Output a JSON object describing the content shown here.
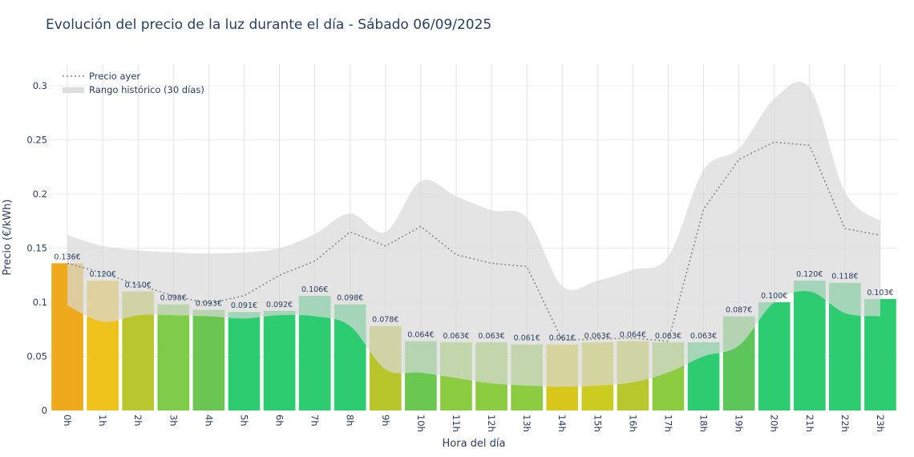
{
  "chart_data": {
    "type": "bar",
    "title": "Evolución del precio de la luz durante el día - Sábado 06/09/2025",
    "xlabel": "Hora del día",
    "ylabel": "Precio (€/kWh)",
    "ylim": [
      0,
      0.32
    ],
    "yticks": [
      0,
      0.05,
      0.1,
      0.15,
      0.2,
      0.25,
      0.3
    ],
    "ytick_labels": [
      "0",
      "0.05",
      "0.1",
      "0.15",
      "0.2",
      "0.25",
      "0.3"
    ],
    "grid": true,
    "categories": [
      "0h",
      "1h",
      "2h",
      "3h",
      "4h",
      "5h",
      "6h",
      "7h",
      "8h",
      "9h",
      "10h",
      "11h",
      "12h",
      "13h",
      "14h",
      "15h",
      "16h",
      "17h",
      "18h",
      "19h",
      "20h",
      "21h",
      "22h",
      "23h"
    ],
    "values": [
      0.136,
      0.12,
      0.11,
      0.098,
      0.093,
      0.091,
      0.092,
      0.106,
      0.098,
      0.078,
      0.064,
      0.063,
      0.063,
      0.061,
      0.061,
      0.063,
      0.064,
      0.063,
      0.063,
      0.087,
      0.1,
      0.12,
      0.118,
      0.103
    ],
    "value_labels": [
      "0.136€",
      "0.120€",
      "0.110€",
      "0.098€",
      "0.093€",
      "0.091€",
      "0.092€",
      "0.106€",
      "0.098€",
      "0.078€",
      "0.064€",
      "0.063€",
      "0.063€",
      "0.061€",
      "0.061€",
      "0.063€",
      "0.064€",
      "0.063€",
      "0.063€",
      "0.087€",
      "0.100€",
      "0.120€",
      "0.118€",
      "0.103€"
    ],
    "bar_colors": [
      "#eeaa1c",
      "#efc21c",
      "#b9c62e",
      "#7ecc48",
      "#6ac650",
      "#2ecc71",
      "#2ecc71",
      "#2ecc71",
      "#2ecc71",
      "#b8c62c",
      "#6ac850",
      "#8ccc40",
      "#8ccc40",
      "#8ccc40",
      "#d8c81c",
      "#cccc20",
      "#b8c82c",
      "#8ccc40",
      "#2ecc71",
      "#5cc65a",
      "#2ecc71",
      "#2ecc71",
      "#2ecc71",
      "#2ecc71"
    ],
    "series": [
      {
        "name": "Precio ayer",
        "type": "line",
        "style": "dotted",
        "color": "#888888",
        "values": [
          0.136,
          0.127,
          0.116,
          0.106,
          0.099,
          0.106,
          0.125,
          0.138,
          0.165,
          0.152,
          0.17,
          0.144,
          0.136,
          0.133,
          0.065,
          0.066,
          0.067,
          0.064,
          0.186,
          0.232,
          0.248,
          0.245,
          0.168,
          0.162
        ]
      },
      {
        "name": "Rango histórico (30 días)",
        "type": "area",
        "color": "#d9d9d9",
        "upper": [
          0.162,
          0.152,
          0.148,
          0.146,
          0.145,
          0.146,
          0.15,
          0.163,
          0.182,
          0.165,
          0.212,
          0.198,
          0.185,
          0.178,
          0.115,
          0.12,
          0.13,
          0.142,
          0.222,
          0.242,
          0.288,
          0.298,
          0.202,
          0.175
        ],
        "lower": [
          0.097,
          0.082,
          0.088,
          0.088,
          0.087,
          0.085,
          0.088,
          0.087,
          0.078,
          0.038,
          0.035,
          0.03,
          0.025,
          0.023,
          0.022,
          0.023,
          0.026,
          0.035,
          0.05,
          0.06,
          0.1,
          0.11,
          0.09,
          0.087
        ]
      }
    ],
    "legend": {
      "position": "top-left",
      "entries": [
        "Precio ayer",
        "Rango histórico (30 días)"
      ]
    }
  }
}
